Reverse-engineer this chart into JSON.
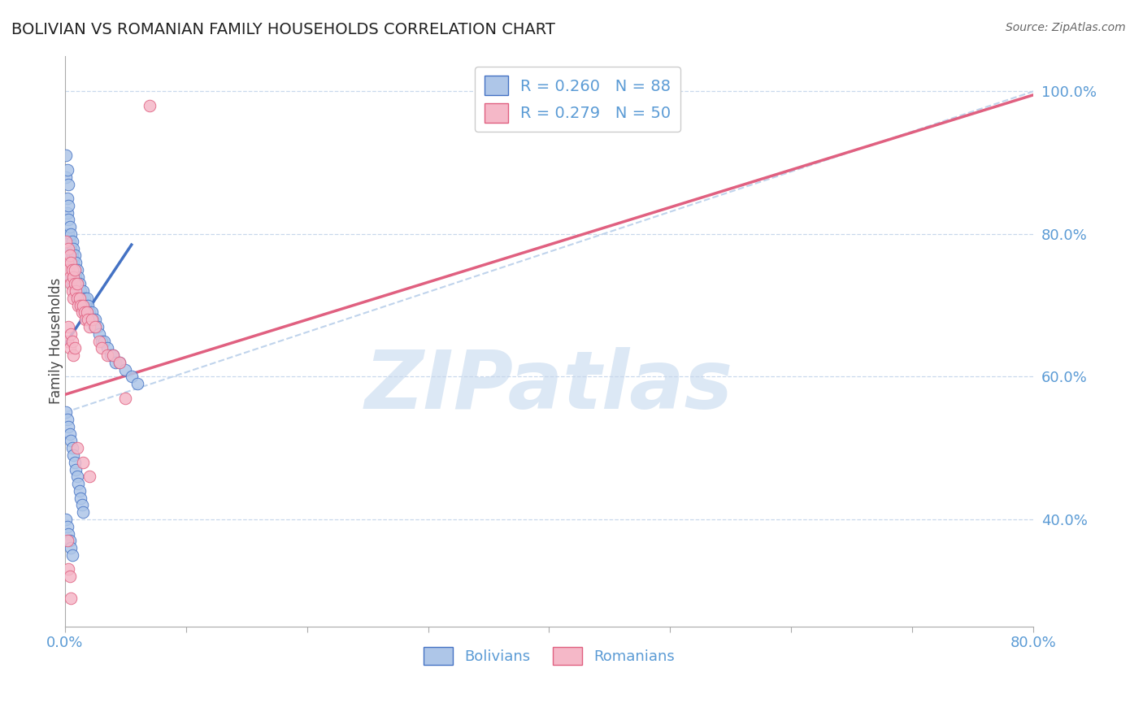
{
  "title": "BOLIVIAN VS ROMANIAN FAMILY HOUSEHOLDS CORRELATION CHART",
  "source": "Source: ZipAtlas.com",
  "ylabel": "Family Households",
  "right_ytick_vals": [
    1.0,
    0.8,
    0.6,
    0.4
  ],
  "right_ytick_labels": [
    "100.0%",
    "80.0%",
    "60.0%",
    "40.0%"
  ],
  "bolivian_x": [
    0.001,
    0.001,
    0.002,
    0.002,
    0.002,
    0.003,
    0.003,
    0.003,
    0.003,
    0.004,
    0.004,
    0.004,
    0.004,
    0.005,
    0.005,
    0.005,
    0.005,
    0.006,
    0.006,
    0.006,
    0.006,
    0.007,
    0.007,
    0.007,
    0.008,
    0.008,
    0.008,
    0.009,
    0.009,
    0.009,
    0.01,
    0.01,
    0.01,
    0.011,
    0.011,
    0.012,
    0.012,
    0.013,
    0.013,
    0.014,
    0.015,
    0.015,
    0.016,
    0.016,
    0.017,
    0.018,
    0.018,
    0.019,
    0.02,
    0.021,
    0.022,
    0.023,
    0.024,
    0.025,
    0.027,
    0.028,
    0.03,
    0.032,
    0.035,
    0.038,
    0.04,
    0.042,
    0.045,
    0.05,
    0.055,
    0.06,
    0.001,
    0.002,
    0.003,
    0.004,
    0.005,
    0.006,
    0.007,
    0.008,
    0.009,
    0.01,
    0.011,
    0.012,
    0.013,
    0.014,
    0.015,
    0.001,
    0.002,
    0.003,
    0.004,
    0.005,
    0.006,
    0.002,
    0.003
  ],
  "bolivian_y": [
    0.88,
    0.91,
    0.85,
    0.83,
    0.78,
    0.84,
    0.82,
    0.8,
    0.79,
    0.81,
    0.79,
    0.77,
    0.76,
    0.8,
    0.78,
    0.76,
    0.74,
    0.79,
    0.77,
    0.75,
    0.73,
    0.78,
    0.76,
    0.74,
    0.77,
    0.75,
    0.73,
    0.76,
    0.74,
    0.72,
    0.75,
    0.73,
    0.71,
    0.74,
    0.72,
    0.73,
    0.71,
    0.72,
    0.7,
    0.71,
    0.72,
    0.7,
    0.71,
    0.69,
    0.7,
    0.71,
    0.69,
    0.7,
    0.69,
    0.68,
    0.69,
    0.68,
    0.67,
    0.68,
    0.67,
    0.66,
    0.65,
    0.65,
    0.64,
    0.63,
    0.63,
    0.62,
    0.62,
    0.61,
    0.6,
    0.59,
    0.55,
    0.54,
    0.53,
    0.52,
    0.51,
    0.5,
    0.49,
    0.48,
    0.47,
    0.46,
    0.45,
    0.44,
    0.43,
    0.42,
    0.41,
    0.4,
    0.39,
    0.38,
    0.37,
    0.36,
    0.35,
    0.89,
    0.87
  ],
  "romanian_x": [
    0.001,
    0.002,
    0.003,
    0.003,
    0.004,
    0.004,
    0.005,
    0.005,
    0.006,
    0.006,
    0.007,
    0.007,
    0.008,
    0.008,
    0.009,
    0.01,
    0.01,
    0.011,
    0.012,
    0.013,
    0.014,
    0.015,
    0.016,
    0.017,
    0.018,
    0.019,
    0.02,
    0.022,
    0.025,
    0.028,
    0.03,
    0.035,
    0.04,
    0.045,
    0.05,
    0.07,
    0.002,
    0.003,
    0.004,
    0.005,
    0.006,
    0.007,
    0.008,
    0.01,
    0.015,
    0.02,
    0.002,
    0.003,
    0.004,
    0.005
  ],
  "romanian_y": [
    0.79,
    0.76,
    0.78,
    0.75,
    0.77,
    0.74,
    0.76,
    0.73,
    0.75,
    0.72,
    0.74,
    0.71,
    0.75,
    0.73,
    0.72,
    0.73,
    0.71,
    0.7,
    0.71,
    0.7,
    0.69,
    0.7,
    0.69,
    0.68,
    0.69,
    0.68,
    0.67,
    0.68,
    0.67,
    0.65,
    0.64,
    0.63,
    0.63,
    0.62,
    0.57,
    0.98,
    0.65,
    0.67,
    0.64,
    0.66,
    0.65,
    0.63,
    0.64,
    0.5,
    0.48,
    0.46,
    0.37,
    0.33,
    0.32,
    0.29
  ],
  "blue_line_x": [
    0.0,
    0.055
  ],
  "blue_line_y": [
    0.645,
    0.785
  ],
  "pink_line_x": [
    0.0,
    0.8
  ],
  "pink_line_y": [
    0.575,
    0.995
  ],
  "diag_line_x": [
    0.0,
    0.8
  ],
  "diag_line_y": [
    0.55,
    1.0
  ],
  "dot_color_blue": "#AEC6E8",
  "dot_color_pink": "#F5B8C8",
  "line_color_blue": "#4472C4",
  "line_color_pink": "#E06080",
  "diag_color": "#C0D4EC",
  "watermark_text": "ZIPatlas",
  "watermark_color": "#DCE8F5",
  "axis_label_color": "#5B9BD5",
  "bg_color": "#FFFFFF",
  "grid_color": "#C8D8EC",
  "xlim": [
    0.0,
    0.8
  ],
  "ylim": [
    0.25,
    1.05
  ],
  "xtick_positions": [
    0.0,
    0.1,
    0.2,
    0.3,
    0.4,
    0.5,
    0.6,
    0.7,
    0.8
  ],
  "xtick_labels_show": [
    "0.0%",
    "",
    "",
    "",
    "",
    "",
    "",
    "",
    "80.0%"
  ]
}
